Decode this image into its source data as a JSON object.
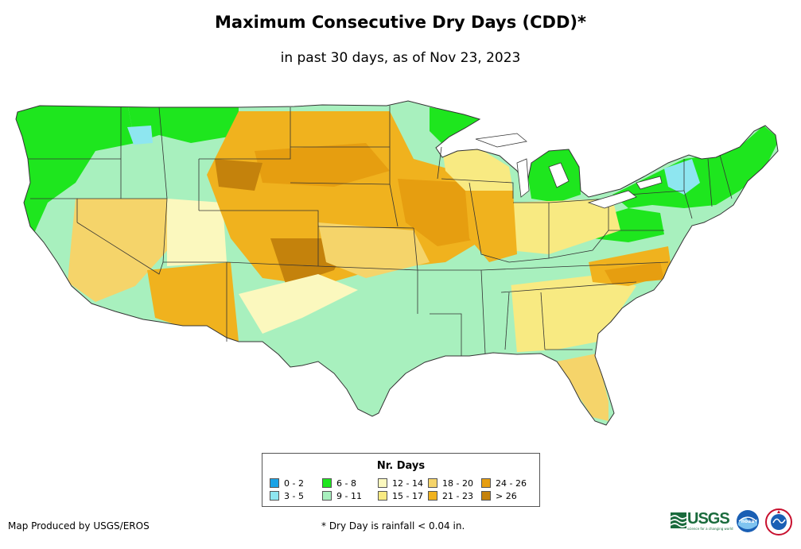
{
  "title": "Maximum Consecutive Dry Days (CDD)*",
  "subtitle": "in past 30 days, as of Nov 23, 2023",
  "legend": {
    "title": "Nr. Days",
    "items": [
      {
        "label": "0 - 2",
        "color": "#1aa3e6"
      },
      {
        "label": "3 - 5",
        "color": "#8ee6f0"
      },
      {
        "label": "6 - 8",
        "color": "#1ee61e"
      },
      {
        "label": "9 - 11",
        "color": "#a8f0be"
      },
      {
        "label": "12 - 14",
        "color": "#fbf8be"
      },
      {
        "label": "15 - 17",
        "color": "#f8ea82"
      },
      {
        "label": "18 - 20",
        "color": "#f5d46a"
      },
      {
        "label": "21 - 23",
        "color": "#f0b21e"
      },
      {
        "label": "24 - 26",
        "color": "#e69e10"
      },
      {
        "label": "> 26",
        "color": "#c4820c"
      }
    ]
  },
  "credit": "Map Produced by USGS/EROS",
  "footnote": "* Dry Day is rainfall < 0.04 in.",
  "logos": {
    "usgs_word": "USGS",
    "usgs_tagline": "science for a changing world",
    "noaa": "noaa",
    "nws": "NATIONAL WEATHER SERVICE"
  }
}
